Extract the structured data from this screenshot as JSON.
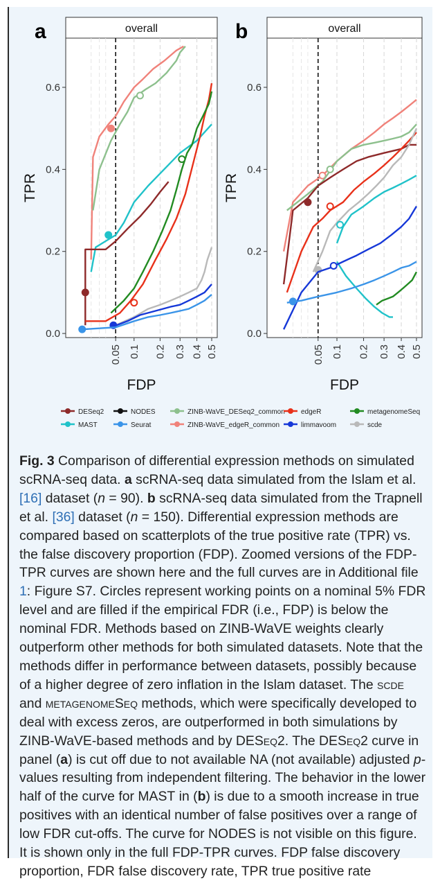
{
  "colors": {
    "DESeq2": "#8e2a2a",
    "NODES": "#111111",
    "ZINB-WaVE_DESeq2_common": "#8dc08d",
    "edgeR": "#e8311a",
    "metagenomeSeq": "#228b22",
    "MAST": "#20c2c9",
    "Seurat": "#3a94e8",
    "ZINB-WaVE_edgeR_common": "#f0827a",
    "limmavoom": "#1638d8",
    "scde": "#b9b9b9"
  },
  "chart_data": [
    {
      "type": "line",
      "panel_label": "a",
      "strip_title": "overall",
      "xlabel": "FDP",
      "ylabel": "TPR",
      "xscale": "sqrt",
      "xlim": [
        0,
        0.5
      ],
      "ylim": [
        -0.01,
        0.72
      ],
      "x_ticks": [
        "0.05",
        "0.1",
        "0.2",
        "0.3",
        "0.4",
        "0.5"
      ],
      "y_ticks": [
        "0.0",
        "0.2",
        "0.4",
        "0.6"
      ],
      "nominal_fdr": 0.05,
      "grid": true,
      "series": [
        {
          "name": "ZINB-WaVE_edgeR_common",
          "x": [
            0.01,
            0.012,
            0.02,
            0.035,
            0.05,
            0.07,
            0.1,
            0.13,
            0.17,
            0.22,
            0.28,
            0.32
          ],
          "y": [
            0.18,
            0.43,
            0.48,
            0.51,
            0.53,
            0.565,
            0.6,
            0.62,
            0.645,
            0.665,
            0.69,
            0.7
          ],
          "working_point": {
            "x": 0.04,
            "y": 0.5,
            "filled": true
          }
        },
        {
          "name": "ZINB-WaVE_DESeq2_common",
          "x": [
            0.012,
            0.02,
            0.04,
            0.06,
            0.08,
            0.1,
            0.14,
            0.18,
            0.23,
            0.28,
            0.3,
            0.33
          ],
          "y": [
            0.3,
            0.4,
            0.47,
            0.51,
            0.54,
            0.575,
            0.595,
            0.61,
            0.635,
            0.665,
            0.685,
            0.7
          ],
          "working_point": {
            "x": 0.12,
            "y": 0.58,
            "filled": false
          }
        },
        {
          "name": "MAST",
          "x": [
            0.01,
            0.015,
            0.03,
            0.05,
            0.07,
            0.1,
            0.15,
            0.2,
            0.3,
            0.4,
            0.5
          ],
          "y": [
            0.15,
            0.21,
            0.225,
            0.24,
            0.27,
            0.32,
            0.36,
            0.39,
            0.44,
            0.47,
            0.51
          ],
          "working_point": {
            "x": 0.035,
            "y": 0.24,
            "filled": true
          }
        },
        {
          "name": "DESeq2",
          "x": [
            0.005,
            0.005,
            0.005,
            0.03,
            0.05,
            0.08,
            0.12,
            0.16,
            0.2,
            0.24
          ],
          "y": [
            0.02,
            0.1,
            0.205,
            0.205,
            0.225,
            0.255,
            0.285,
            0.315,
            0.345,
            0.37
          ],
          "working_point": {
            "x": 0.005,
            "y": 0.1,
            "filled": true
          }
        },
        {
          "name": "edgeR",
          "x": [
            0.005,
            0.03,
            0.06,
            0.09,
            0.13,
            0.18,
            0.23,
            0.28,
            0.33,
            0.38,
            0.42,
            0.45,
            0.48,
            0.5
          ],
          "y": [
            0.03,
            0.03,
            0.05,
            0.08,
            0.12,
            0.18,
            0.23,
            0.28,
            0.34,
            0.42,
            0.48,
            0.53,
            0.57,
            0.61
          ],
          "working_point": {
            "x": 0.1,
            "y": 0.075,
            "filled": false
          }
        },
        {
          "name": "metagenomeSeq",
          "x": [
            0.04,
            0.07,
            0.1,
            0.13,
            0.17,
            0.21,
            0.25,
            0.28,
            0.31,
            0.34,
            0.37,
            0.4,
            0.44,
            0.48,
            0.5
          ],
          "y": [
            0.05,
            0.08,
            0.11,
            0.15,
            0.2,
            0.25,
            0.3,
            0.35,
            0.4,
            0.44,
            0.46,
            0.5,
            0.53,
            0.56,
            0.59
          ],
          "working_point": {
            "x": 0.31,
            "y": 0.425,
            "filled": false
          }
        },
        {
          "name": "scde",
          "x": [
            0.05,
            0.1,
            0.15,
            0.2,
            0.25,
            0.3,
            0.35,
            0.4,
            0.43,
            0.45,
            0.47,
            0.5
          ],
          "y": [
            0.02,
            0.04,
            0.06,
            0.07,
            0.08,
            0.09,
            0.1,
            0.11,
            0.13,
            0.15,
            0.18,
            0.21
          ],
          "working_point": null
        },
        {
          "name": "limmavoom",
          "x": [
            0.04,
            0.08,
            0.12,
            0.18,
            0.25,
            0.3,
            0.35,
            0.4,
            0.45,
            0.5
          ],
          "y": [
            0.015,
            0.03,
            0.045,
            0.055,
            0.065,
            0.07,
            0.08,
            0.09,
            0.1,
            0.12
          ],
          "working_point": {
            "x": 0.045,
            "y": 0.02,
            "filled": true
          }
        },
        {
          "name": "Seurat",
          "x": [
            0.003,
            0.05,
            0.1,
            0.15,
            0.2,
            0.25,
            0.3,
            0.35,
            0.4,
            0.45,
            0.5
          ],
          "y": [
            0.01,
            0.015,
            0.03,
            0.04,
            0.045,
            0.05,
            0.055,
            0.06,
            0.07,
            0.08,
            0.095
          ],
          "working_point": {
            "x": 0.003,
            "y": 0.01,
            "filled": true
          }
        }
      ]
    },
    {
      "type": "line",
      "panel_label": "b",
      "strip_title": "overall",
      "xlabel": "FDP",
      "ylabel": "TPR",
      "xscale": "sqrt",
      "xlim": [
        0,
        0.5
      ],
      "ylim": [
        -0.01,
        0.72
      ],
      "x_ticks": [
        "0.05",
        "0.1",
        "0.2",
        "0.3",
        "0.4",
        "0.5"
      ],
      "y_ticks": [
        "0.0",
        "0.2",
        "0.4",
        "0.6"
      ],
      "nominal_fdr": 0.05,
      "grid": true,
      "series": [
        {
          "name": "ZINB-WaVE_edgeR_common",
          "x": [
            0.003,
            0.01,
            0.03,
            0.06,
            0.1,
            0.15,
            0.2,
            0.25,
            0.3,
            0.35,
            0.4,
            0.45,
            0.5
          ],
          "y": [
            0.2,
            0.32,
            0.36,
            0.385,
            0.42,
            0.45,
            0.47,
            0.49,
            0.51,
            0.525,
            0.54,
            0.555,
            0.57
          ],
          "working_point": {
            "x": 0.06,
            "y": 0.385,
            "filled": false
          }
        },
        {
          "name": "ZINB-WaVE_DESeq2_common",
          "x": [
            0.005,
            0.03,
            0.06,
            0.1,
            0.15,
            0.2,
            0.25,
            0.3,
            0.35,
            0.4,
            0.45,
            0.5
          ],
          "y": [
            0.3,
            0.34,
            0.37,
            0.42,
            0.45,
            0.46,
            0.465,
            0.47,
            0.475,
            0.48,
            0.49,
            0.51
          ],
          "working_point": {
            "x": 0.08,
            "y": 0.4,
            "filled": false
          }
        },
        {
          "name": "DESeq2",
          "x": [
            0.003,
            0.01,
            0.03,
            0.05,
            0.08,
            0.12,
            0.17,
            0.22,
            0.3,
            0.4,
            0.45,
            0.5
          ],
          "y": [
            0.12,
            0.3,
            0.33,
            0.36,
            0.38,
            0.4,
            0.42,
            0.43,
            0.44,
            0.45,
            0.46,
            0.46
          ],
          "working_point": {
            "x": 0.03,
            "y": 0.32,
            "filled": true
          }
        },
        {
          "name": "edgeR",
          "x": [
            0.005,
            0.02,
            0.04,
            0.06,
            0.08,
            0.12,
            0.16,
            0.2,
            0.25,
            0.3,
            0.35,
            0.4,
            0.45,
            0.5
          ],
          "y": [
            0.1,
            0.2,
            0.26,
            0.28,
            0.3,
            0.32,
            0.35,
            0.37,
            0.39,
            0.41,
            0.43,
            0.45,
            0.47,
            0.49
          ],
          "working_point": {
            "x": 0.08,
            "y": 0.31,
            "filled": false
          }
        },
        {
          "name": "scde",
          "x": [
            0.04,
            0.06,
            0.08,
            0.1,
            0.14,
            0.18,
            0.22,
            0.26,
            0.3,
            0.35,
            0.4,
            0.45,
            0.5
          ],
          "y": [
            0.15,
            0.2,
            0.25,
            0.27,
            0.3,
            0.32,
            0.34,
            0.36,
            0.38,
            0.41,
            0.43,
            0.46,
            0.5
          ],
          "working_point": {
            "x": 0.05,
            "y": 0.155,
            "filled": true
          }
        },
        {
          "name": "MAST",
          "x": [
            0.1,
            0.12,
            0.15,
            0.2,
            0.25,
            0.3,
            0.35,
            0.4,
            0.45,
            0.5
          ],
          "y": [
            0.22,
            0.26,
            0.29,
            0.31,
            0.33,
            0.345,
            0.355,
            0.365,
            0.375,
            0.385
          ],
          "working_point": {
            "x": 0.11,
            "y": 0.265,
            "filled": false
          }
        },
        {
          "name": "MAST (low-FDR arc)",
          "x": [
            0.1,
            0.13,
            0.17,
            0.21,
            0.25,
            0.29,
            0.33,
            0.35
          ],
          "y": [
            0.175,
            0.14,
            0.11,
            0.085,
            0.065,
            0.05,
            0.04,
            0.04
          ],
          "working_point": null
        },
        {
          "name": "limmavoom",
          "x": [
            0.003,
            0.02,
            0.05,
            0.08,
            0.12,
            0.17,
            0.22,
            0.28,
            0.34,
            0.4,
            0.45,
            0.5
          ],
          "y": [
            0.01,
            0.1,
            0.15,
            0.16,
            0.175,
            0.19,
            0.205,
            0.22,
            0.24,
            0.26,
            0.28,
            0.31
          ],
          "working_point": {
            "x": 0.09,
            "y": 0.165,
            "filled": false
          }
        },
        {
          "name": "Seurat",
          "x": [
            0.005,
            0.02,
            0.05,
            0.1,
            0.15,
            0.2,
            0.25,
            0.3,
            0.35,
            0.4,
            0.45,
            0.5
          ],
          "y": [
            0.075,
            0.08,
            0.09,
            0.1,
            0.11,
            0.12,
            0.13,
            0.14,
            0.15,
            0.16,
            0.165,
            0.175
          ],
          "working_point": {
            "x": 0.01,
            "y": 0.078,
            "filled": true
          }
        },
        {
          "name": "metagenomeSeq",
          "x": [
            0.26,
            0.29,
            0.32,
            0.35,
            0.38,
            0.41,
            0.44,
            0.47,
            0.5
          ],
          "y": [
            0.07,
            0.08,
            0.085,
            0.09,
            0.1,
            0.11,
            0.12,
            0.13,
            0.15
          ],
          "working_point": null
        }
      ]
    }
  ],
  "legend": {
    "items": [
      {
        "label": "DESeq2",
        "key": "DESeq2"
      },
      {
        "label": "NODES",
        "key": "NODES"
      },
      {
        "label": "ZINB-WaVE_DESeq2_common",
        "key": "ZINB-WaVE_DESeq2_common"
      },
      {
        "label": "edgeR",
        "key": "edgeR"
      },
      {
        "label": "metagenomeSeq",
        "key": "metagenomeSeq"
      },
      {
        "label": "MAST",
        "key": "MAST"
      },
      {
        "label": "Seurat",
        "key": "Seurat"
      },
      {
        "label": "ZINB-WaVE_edgeR_common",
        "key": "ZINB-WaVE_edgeR_common"
      },
      {
        "label": "limmavoom",
        "key": "limmavoom"
      },
      {
        "label": "scde",
        "key": "scde"
      }
    ]
  },
  "caption": {
    "fig_label": "Fig. 3",
    "s1": " Comparison of differential expression methods on simulated scRNA-seq data. ",
    "a": "a",
    "s2": " scRNA-seq data simulated from the Islam et al. ",
    "ref16": "[16]",
    "s3": " dataset (",
    "n_a": "n",
    "s4": " = 90). ",
    "b": "b",
    "s5": " scRNA-seq data simulated from the Trapnell et al. ",
    "ref36": "[36]",
    "s6": " dataset (",
    "n_b": "n",
    "s7": " = 150). Differential expression methods are compared based on scatterplots of the true positive rate (TPR) vs. the false discovery proportion (FDP). Zoomed versions of the FDP-TPR curves are shown here and the full curves are in Additional file ",
    "file1": "1",
    "s8": ": Figure S7. Circles represent working points on a nominal 5% FDR level and are filled if the empirical FDR (i.e., FDP) is below the nominal FDR. Methods based on ZINB-WaVE weights clearly outperform other methods for both simulated datasets. Note that the methods differ in performance between datasets, possibly because of a higher degree of zero inflation in the Islam dataset. The ",
    "scde": "scde",
    "s9": " and ",
    "metagenomeseq": "metagenomeSeq",
    "s10": " methods, which were specifically developed to deal with excess zeros, are outperformed in both simulations by ZINB-WaVE-based methods and by ",
    "deseq2_a": "DESeq2",
    "s11": ". The ",
    "deseq2_b": "DESeq2",
    "s12": " curve in panel (",
    "a2": "a",
    "s13": ") is cut off due to not available NA (not available) adjusted ",
    "p": "p",
    "s14": "-values resulting from independent filtering. The behavior in the lower half of the curve for ",
    "mast": "MAST",
    "s15": " in (",
    "b2": "b",
    "s16": ") is due to a smooth increase in true positives with an identical number of false positives over a range of low FDR cut-offs. The curve for ",
    "nodes": "NODES",
    "s17": " is not visible on this figure. It is shown only in the full FDP-TPR curves. FDP false discovery proportion, FDR false discovery rate, TPR true positive rate"
  }
}
